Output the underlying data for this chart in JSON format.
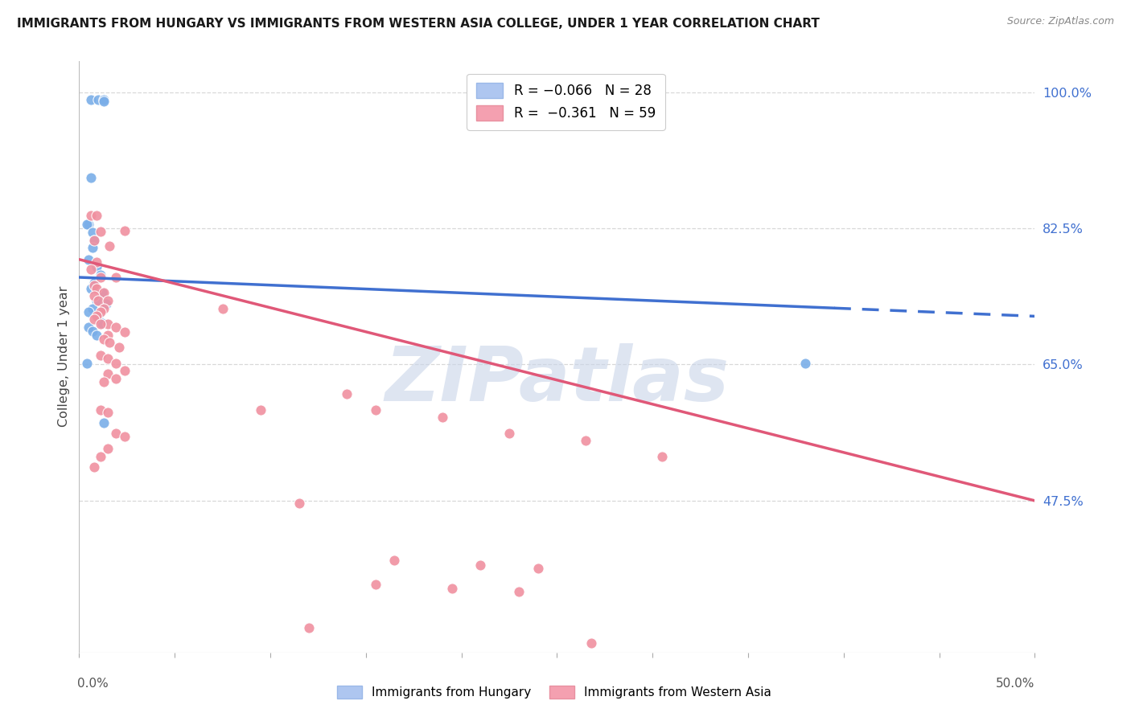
{
  "title": "IMMIGRANTS FROM HUNGARY VS IMMIGRANTS FROM WESTERN ASIA COLLEGE, UNDER 1 YEAR CORRELATION CHART",
  "source": "Source: ZipAtlas.com",
  "ylabel": "College, Under 1 year",
  "xlim": [
    0.0,
    0.5
  ],
  "ylim": [
    0.28,
    1.04
  ],
  "right_yticks": [
    1.0,
    0.825,
    0.65,
    0.475
  ],
  "right_yticklabels": [
    "100.0%",
    "82.5%",
    "65.0%",
    "47.5%"
  ],
  "xtick_positions": [
    0.0,
    0.05,
    0.1,
    0.15,
    0.2,
    0.25,
    0.3,
    0.35,
    0.4,
    0.45,
    0.5
  ],
  "blue_scatter_x": [
    0.006,
    0.01,
    0.013,
    0.013,
    0.006,
    0.005,
    0.004,
    0.007,
    0.008,
    0.007,
    0.005,
    0.009,
    0.011,
    0.008,
    0.006,
    0.012,
    0.009,
    0.014,
    0.007,
    0.005,
    0.01,
    0.012,
    0.005,
    0.007,
    0.009,
    0.004,
    0.38,
    0.013
  ],
  "blue_scatter_y": [
    0.99,
    0.99,
    0.99,
    0.988,
    0.89,
    0.83,
    0.83,
    0.82,
    0.81,
    0.8,
    0.785,
    0.775,
    0.765,
    0.755,
    0.748,
    0.742,
    0.732,
    0.728,
    0.722,
    0.718,
    0.712,
    0.703,
    0.698,
    0.693,
    0.688,
    0.652,
    0.652,
    0.575
  ],
  "pink_scatter_x": [
    0.006,
    0.009,
    0.011,
    0.008,
    0.016,
    0.024,
    0.009,
    0.006,
    0.011,
    0.019,
    0.008,
    0.009,
    0.013,
    0.008,
    0.01,
    0.015,
    0.013,
    0.011,
    0.009,
    0.008,
    0.015,
    0.011,
    0.019,
    0.024,
    0.015,
    0.013,
    0.016,
    0.021,
    0.011,
    0.015,
    0.019,
    0.024,
    0.015,
    0.019,
    0.013,
    0.011,
    0.015,
    0.019,
    0.024,
    0.015,
    0.011,
    0.008,
    0.075,
    0.155,
    0.19,
    0.14,
    0.095,
    0.225,
    0.265,
    0.305,
    0.165,
    0.21,
    0.115,
    0.24,
    0.12,
    0.155,
    0.195,
    0.23,
    0.268
  ],
  "pink_scatter_y": [
    0.842,
    0.842,
    0.821,
    0.81,
    0.802,
    0.822,
    0.782,
    0.772,
    0.762,
    0.762,
    0.752,
    0.748,
    0.742,
    0.738,
    0.732,
    0.732,
    0.722,
    0.718,
    0.712,
    0.708,
    0.702,
    0.702,
    0.698,
    0.692,
    0.688,
    0.682,
    0.678,
    0.672,
    0.662,
    0.658,
    0.652,
    0.642,
    0.638,
    0.632,
    0.628,
    0.592,
    0.588,
    0.562,
    0.558,
    0.542,
    0.532,
    0.518,
    0.722,
    0.592,
    0.582,
    0.612,
    0.592,
    0.562,
    0.552,
    0.532,
    0.398,
    0.392,
    0.472,
    0.388,
    0.312,
    0.368,
    0.362,
    0.358,
    0.292
  ],
  "blue_line_x0": 0.0,
  "blue_line_x_solid_end": 0.395,
  "blue_line_x1": 0.5,
  "blue_line_y0": 0.762,
  "blue_line_y1": 0.712,
  "pink_line_x0": 0.0,
  "pink_line_x1": 0.5,
  "pink_line_y0": 0.785,
  "pink_line_y1": 0.475,
  "watermark": "ZIPatlas",
  "watermark_color": "#c8d4e8",
  "scatter_blue_color": "#7aaee8",
  "scatter_pink_color": "#f090a0",
  "grid_color": "#d8d8d8",
  "background_color": "#ffffff",
  "blue_line_color": "#4070d0",
  "pink_line_color": "#e05878",
  "figsize": [
    14.06,
    8.92
  ],
  "dpi": 100
}
